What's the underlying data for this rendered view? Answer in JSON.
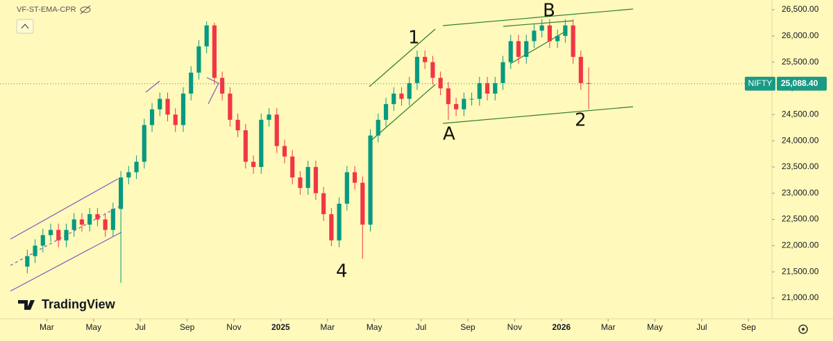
{
  "chart_data": {
    "type": "candlestick",
    "indicator": "VF-ST-EMA-CPR",
    "symbol": "NIFTY",
    "brand": "TradingView",
    "annotations": [
      "1",
      "B",
      "A",
      "2",
      "4"
    ],
    "up_color": "#089981",
    "down_color": "#f23645",
    "x": [
      "2024-02",
      "2024-02",
      "2024-02",
      "2024-03",
      "2024-03",
      "2024-03",
      "2024-04",
      "2024-04",
      "2024-04",
      "2024-05",
      "2024-05",
      "2024-05",
      "2024-06",
      "2024-06",
      "2024-06",
      "2024-07",
      "2024-07",
      "2024-07",
      "2024-08",
      "2024-08",
      "2024-08",
      "2024-09",
      "2024-09",
      "2024-09",
      "2024-10",
      "2024-10",
      "2024-10",
      "2024-11",
      "2024-11",
      "2024-11",
      "2024-12",
      "2024-12",
      "2024-12",
      "2025-01",
      "2025-01",
      "2025-01",
      "2025-02",
      "2025-02",
      "2025-02",
      "2025-03",
      "2025-03",
      "2025-03",
      "2025-04",
      "2025-04",
      "2025-04",
      "2025-05",
      "2025-05",
      "2025-05",
      "2025-06",
      "2025-06",
      "2025-06",
      "2025-07",
      "2025-07",
      "2025-07",
      "2025-08",
      "2025-08",
      "2025-08",
      "2025-09",
      "2025-09",
      "2025-09",
      "2025-10",
      "2025-10",
      "2025-10",
      "2025-11",
      "2025-11",
      "2025-11",
      "2025-12",
      "2025-12",
      "2025-12",
      "2026-01",
      "2026-01",
      "2026-01",
      "2026-02"
    ],
    "open": [
      21600,
      21800,
      22000,
      22200,
      22300,
      22100,
      22300,
      22500,
      22400,
      22600,
      22500,
      22300,
      22700,
      23300,
      23400,
      23600,
      24300,
      24600,
      24800,
      24500,
      24300,
      24900,
      25300,
      25800,
      26200,
      25200,
      24900,
      24400,
      24200,
      23600,
      23500,
      24400,
      24500,
      23900,
      23700,
      23300,
      23100,
      23500,
      23000,
      22600,
      22100,
      22800,
      23400,
      23200,
      22400,
      24100,
      24400,
      24700,
      24900,
      24800,
      25100,
      25600,
      25500,
      25200,
      25000,
      24700,
      24600,
      24800,
      24800,
      25100,
      24900,
      25100,
      25500,
      25900,
      25600,
      25900,
      26100,
      26200,
      25900,
      26000,
      26200,
      25600,
      25100
    ],
    "high": [
      21920,
      22120,
      22320,
      22420,
      22420,
      22420,
      22620,
      22620,
      22720,
      22720,
      22620,
      22820,
      23420,
      23520,
      23720,
      24420,
      24720,
      24920,
      24920,
      24620,
      25020,
      25420,
      25920,
      26277,
      26250,
      25320,
      25020,
      24520,
      24320,
      23720,
      24520,
      24620,
      24620,
      24020,
      23820,
      23420,
      23620,
      23620,
      23120,
      22720,
      22920,
      23520,
      23520,
      23320,
      24220,
      24520,
      24820,
      25020,
      25020,
      25220,
      25720,
      25720,
      25620,
      25320,
      25120,
      24820,
      24920,
      24920,
      25220,
      25220,
      25220,
      25620,
      26020,
      26020,
      26020,
      26220,
      26320,
      26320,
      26120,
      26320,
      26320,
      25720,
      25400
    ],
    "low": [
      21470,
      21670,
      21870,
      22070,
      21970,
      21970,
      22170,
      22270,
      22270,
      22370,
      22170,
      22170,
      21290,
      23170,
      23270,
      23470,
      24170,
      24470,
      24370,
      24170,
      24170,
      24770,
      25170,
      25670,
      25070,
      24770,
      24270,
      24070,
      23470,
      23370,
      23370,
      24270,
      23770,
      23570,
      23170,
      22970,
      22970,
      22870,
      22470,
      21990,
      21970,
      22670,
      23070,
      21750,
      22270,
      23970,
      24270,
      24570,
      24670,
      24670,
      24970,
      25370,
      25070,
      24870,
      24400,
      24470,
      24470,
      24670,
      24670,
      24770,
      24770,
      24970,
      25370,
      25470,
      25470,
      25770,
      25970,
      25770,
      25770,
      25870,
      25470,
      24970,
      24600
    ],
    "close": [
      21800,
      22000,
      22200,
      22300,
      22100,
      22300,
      22500,
      22400,
      22600,
      22500,
      22300,
      22700,
      23300,
      23400,
      23600,
      24300,
      24600,
      24800,
      24500,
      24300,
      24900,
      25300,
      25800,
      26200,
      25200,
      24900,
      24400,
      24200,
      23600,
      23500,
      24400,
      24500,
      23900,
      23700,
      23300,
      23100,
      23500,
      23000,
      22600,
      22100,
      22800,
      23400,
      23200,
      22400,
      24100,
      24400,
      24700,
      24900,
      24800,
      25100,
      25600,
      25500,
      25200,
      25000,
      24700,
      24600,
      24800,
      24800,
      25100,
      24900,
      25100,
      25500,
      25900,
      25600,
      25900,
      26100,
      26200,
      25900,
      26000,
      26200,
      25600,
      25100,
      25088.4
    ],
    "last_price": {
      "value": 25088.4,
      "label": "25,088.40"
    },
    "xlim": [
      "2024-01",
      "2026-10"
    ],
    "xticks": [
      {
        "value": "2024-03",
        "label": "Mar"
      },
      {
        "value": "2024-05",
        "label": "May"
      },
      {
        "value": "2024-07",
        "label": "Jul"
      },
      {
        "value": "2024-09",
        "label": "Sep"
      },
      {
        "value": "2024-11",
        "label": "Nov"
      },
      {
        "value": "2025-01",
        "label": "2025"
      },
      {
        "value": "2025-03",
        "label": "Mar"
      },
      {
        "value": "2025-05",
        "label": "May"
      },
      {
        "value": "2025-07",
        "label": "Jul"
      },
      {
        "value": "2025-09",
        "label": "Sep"
      },
      {
        "value": "2025-11",
        "label": "Nov"
      },
      {
        "value": "2026-01",
        "label": "2026"
      },
      {
        "value": "2026-03",
        "label": "Mar"
      },
      {
        "value": "2026-05",
        "label": "May"
      },
      {
        "value": "2026-07",
        "label": "Jul"
      },
      {
        "value": "2026-09",
        "label": "Sep"
      }
    ],
    "ylim": [
      20604,
      26685
    ],
    "yticks": [
      {
        "value": 21000,
        "label": "21,000.00"
      },
      {
        "value": 21500,
        "label": "21,500.00"
      },
      {
        "value": 22000,
        "label": "22,000.00"
      },
      {
        "value": 22500,
        "label": "22,500.00"
      },
      {
        "value": 23000,
        "label": "23,000.00"
      },
      {
        "value": 23500,
        "label": "23,500.00"
      },
      {
        "value": 24000,
        "label": "24,000.00"
      },
      {
        "value": 24500,
        "label": "24,500.00"
      },
      {
        "value": 25000,
        "label": "25,000.00"
      },
      {
        "value": 25500,
        "label": "25,500.00"
      },
      {
        "value": 26000,
        "label": "26,000.00"
      },
      {
        "value": 26500,
        "label": "26,500.00"
      }
    ]
  }
}
